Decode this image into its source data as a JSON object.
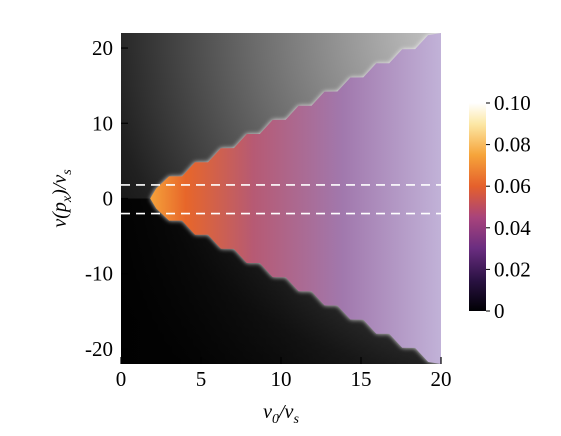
{
  "chart_data": {
    "type": "heatmap",
    "title": "",
    "xlabel": "v0/vs",
    "ylabel": "v(px)/vs",
    "xlim": [
      0,
      20
    ],
    "ylim": [
      -22,
      22
    ],
    "xticks": [
      "0",
      "5",
      "10",
      "15",
      "20"
    ],
    "yticks": [
      "20",
      "10",
      "0",
      "-10",
      "-20"
    ],
    "colorbar": {
      "range": [
        0,
        0.1
      ],
      "ticks": [
        "0.10",
        "0.08",
        "0.06",
        "0.04",
        "0.02",
        "0"
      ],
      "colormap": "black-purple-orange-white"
    },
    "region": {
      "boundary_vertex_x": 2.2,
      "boundary_vertex_y": 0,
      "boundary_upper_end": [
        20,
        22
      ],
      "boundary_lower_end": [
        20,
        -22
      ]
    },
    "dashed_lines_y": [
      1.8,
      -2.0
    ],
    "colors": {
      "outside_dark": "#111111",
      "outside_light": "#bdbdbd",
      "peak_orange": "#f0801e",
      "mid_purple": "#a06fa8",
      "light_lavender": "#c3b4d9",
      "dashed_line": "#ffffff"
    }
  }
}
